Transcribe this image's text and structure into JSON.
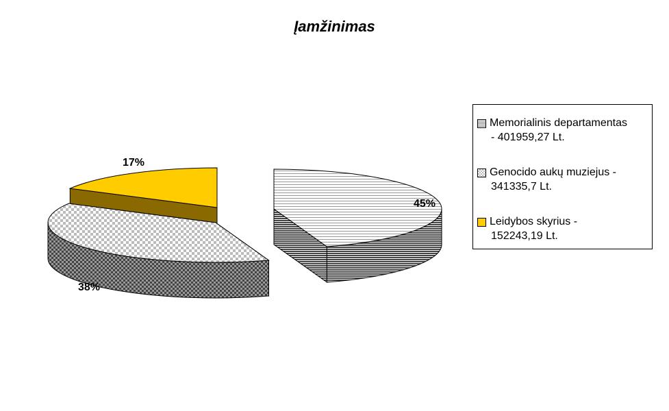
{
  "chart_data": {
    "type": "pie",
    "title": "Įamžinimas",
    "categories": [
      "Memorialinis departamentas - 401959,27 Lt.",
      "Genocido aukų muziejus - 341335,7 Lt.",
      "Leidybos skyrius - 152243,19 Lt."
    ],
    "values": [
      401959.27,
      341335.7,
      152243.19
    ],
    "data_labels": [
      "45%",
      "38%",
      "17%"
    ],
    "colors": [
      "#ffffff",
      "#ffffff",
      "#ffcc00"
    ],
    "legend_position": "right",
    "style": "3d-exploded"
  },
  "legend": [
    {
      "line1": "Memorialinis departamentas",
      "line2": "- 401959,27 Lt."
    },
    {
      "line1": "Genocido aukų muziejus  -",
      "line2": "341335,7 Lt."
    },
    {
      "line1": "Leidybos skyrius  -",
      "line2": "152243,19 Lt."
    }
  ]
}
